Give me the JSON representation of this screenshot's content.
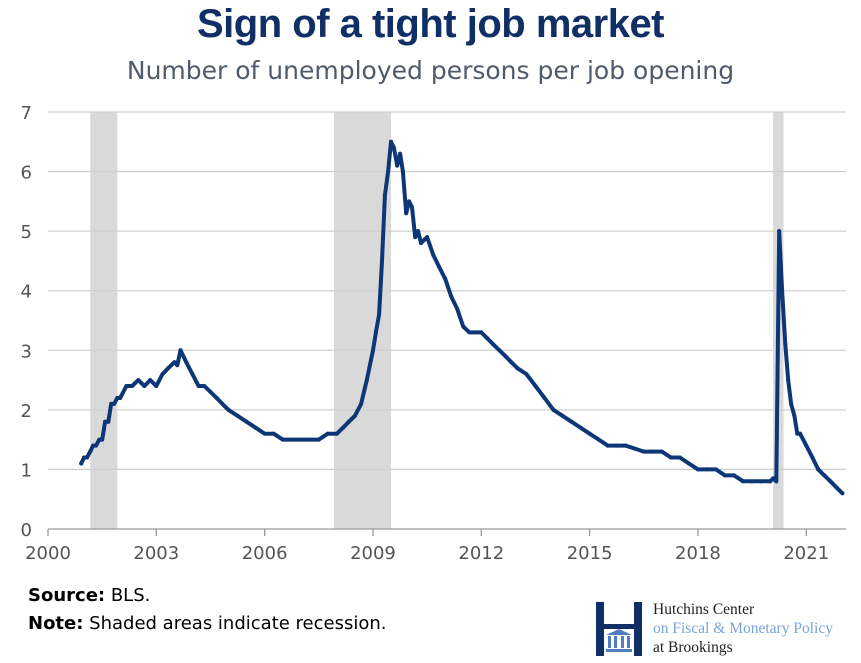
{
  "title": "Sign of a tight job market",
  "subtitle": "Number of unemployed persons per job opening",
  "source_label": "Source:",
  "source_text": " BLS.",
  "note_label": "Note:",
  "note_text": " Shaded areas indicate recession.",
  "logo": {
    "line1": "Hutchins Center",
    "line2": "on Fiscal & Monetary Policy",
    "line3": "at Brookings"
  },
  "colors": {
    "line": "#0d3677",
    "recession": "#d9d9d9",
    "grid": "#d0d0d0",
    "title": "#0f2f66",
    "subtitle": "#4f5b6c"
  },
  "chart_data": {
    "type": "line",
    "title": "Sign of a tight job market",
    "subtitle": "Number of unemployed persons per job opening",
    "xlim": [
      2000,
      2022.1
    ],
    "ylim": [
      0,
      7
    ],
    "xticks": [
      "2000",
      "2003",
      "2006",
      "2009",
      "2012",
      "2015",
      "2018",
      "2021"
    ],
    "yticks": [
      "0",
      "1",
      "2",
      "3",
      "4",
      "5",
      "6",
      "7"
    ],
    "grid": true,
    "recessions": [
      [
        2001.17,
        2001.92
      ],
      [
        2007.92,
        2009.5
      ],
      [
        2020.08,
        2020.37
      ]
    ],
    "series": [
      {
        "x": [
          2000.92,
          2001.0,
          2001.08,
          2001.17,
          2001.25,
          2001.33,
          2001.42,
          2001.5,
          2001.58,
          2001.67,
          2001.75,
          2001.83,
          2001.92,
          2002.0,
          2002.17,
          2002.33,
          2002.5,
          2002.67,
          2002.83,
          2003.0,
          2003.17,
          2003.33,
          2003.5,
          2003.58,
          2003.67,
          2003.83,
          2004.0,
          2004.17,
          2004.33,
          2004.5,
          2004.67,
          2004.83,
          2005.0,
          2005.25,
          2005.5,
          2005.75,
          2006.0,
          2006.25,
          2006.5,
          2006.75,
          2007.0,
          2007.25,
          2007.5,
          2007.75,
          2008.0,
          2008.17,
          2008.33,
          2008.5,
          2008.67,
          2008.83,
          2009.0,
          2009.08,
          2009.17,
          2009.25,
          2009.33,
          2009.42,
          2009.5,
          2009.58,
          2009.67,
          2009.75,
          2009.83,
          2009.92,
          2010.0,
          2010.08,
          2010.17,
          2010.25,
          2010.33,
          2010.5,
          2010.67,
          2010.83,
          2011.0,
          2011.17,
          2011.33,
          2011.5,
          2011.67,
          2011.83,
          2012.0,
          2012.17,
          2012.33,
          2012.5,
          2012.67,
          2012.83,
          2013.0,
          2013.25,
          2013.5,
          2013.75,
          2014.0,
          2014.25,
          2014.5,
          2014.75,
          2015.0,
          2015.25,
          2015.5,
          2015.75,
          2016.0,
          2016.25,
          2016.5,
          2016.75,
          2017.0,
          2017.25,
          2017.5,
          2017.75,
          2018.0,
          2018.25,
          2018.5,
          2018.75,
          2019.0,
          2019.25,
          2019.5,
          2019.75,
          2020.0,
          2020.08,
          2020.17,
          2020.25,
          2020.33,
          2020.42,
          2020.5,
          2020.58,
          2020.67,
          2020.75,
          2020.83,
          2021.0,
          2021.17,
          2021.33,
          2021.5,
          2021.67,
          2021.83,
          2022.0
        ],
        "values": [
          1.1,
          1.2,
          1.2,
          1.3,
          1.4,
          1.4,
          1.5,
          1.5,
          1.8,
          1.8,
          2.1,
          2.1,
          2.2,
          2.2,
          2.4,
          2.4,
          2.5,
          2.4,
          2.5,
          2.4,
          2.6,
          2.7,
          2.8,
          2.75,
          3.0,
          2.8,
          2.6,
          2.4,
          2.4,
          2.3,
          2.2,
          2.1,
          2.0,
          1.9,
          1.8,
          1.7,
          1.6,
          1.6,
          1.5,
          1.5,
          1.5,
          1.5,
          1.5,
          1.6,
          1.6,
          1.7,
          1.8,
          1.9,
          2.1,
          2.5,
          3.0,
          3.3,
          3.6,
          4.5,
          5.6,
          6.0,
          6.5,
          6.4,
          6.1,
          6.3,
          6.0,
          5.3,
          5.5,
          5.4,
          4.9,
          5.0,
          4.8,
          4.9,
          4.6,
          4.4,
          4.2,
          3.9,
          3.7,
          3.4,
          3.3,
          3.3,
          3.3,
          3.2,
          3.1,
          3.0,
          2.9,
          2.8,
          2.7,
          2.6,
          2.4,
          2.2,
          2.0,
          1.9,
          1.8,
          1.7,
          1.6,
          1.5,
          1.4,
          1.4,
          1.4,
          1.35,
          1.3,
          1.3,
          1.3,
          1.2,
          1.2,
          1.1,
          1.0,
          1.0,
          1.0,
          0.9,
          0.9,
          0.8,
          0.8,
          0.8,
          0.8,
          0.85,
          0.8,
          5.0,
          4.0,
          3.1,
          2.5,
          2.1,
          1.9,
          1.6,
          1.6,
          1.4,
          1.2,
          1.0,
          0.9,
          0.8,
          0.7,
          0.6
        ]
      }
    ]
  }
}
